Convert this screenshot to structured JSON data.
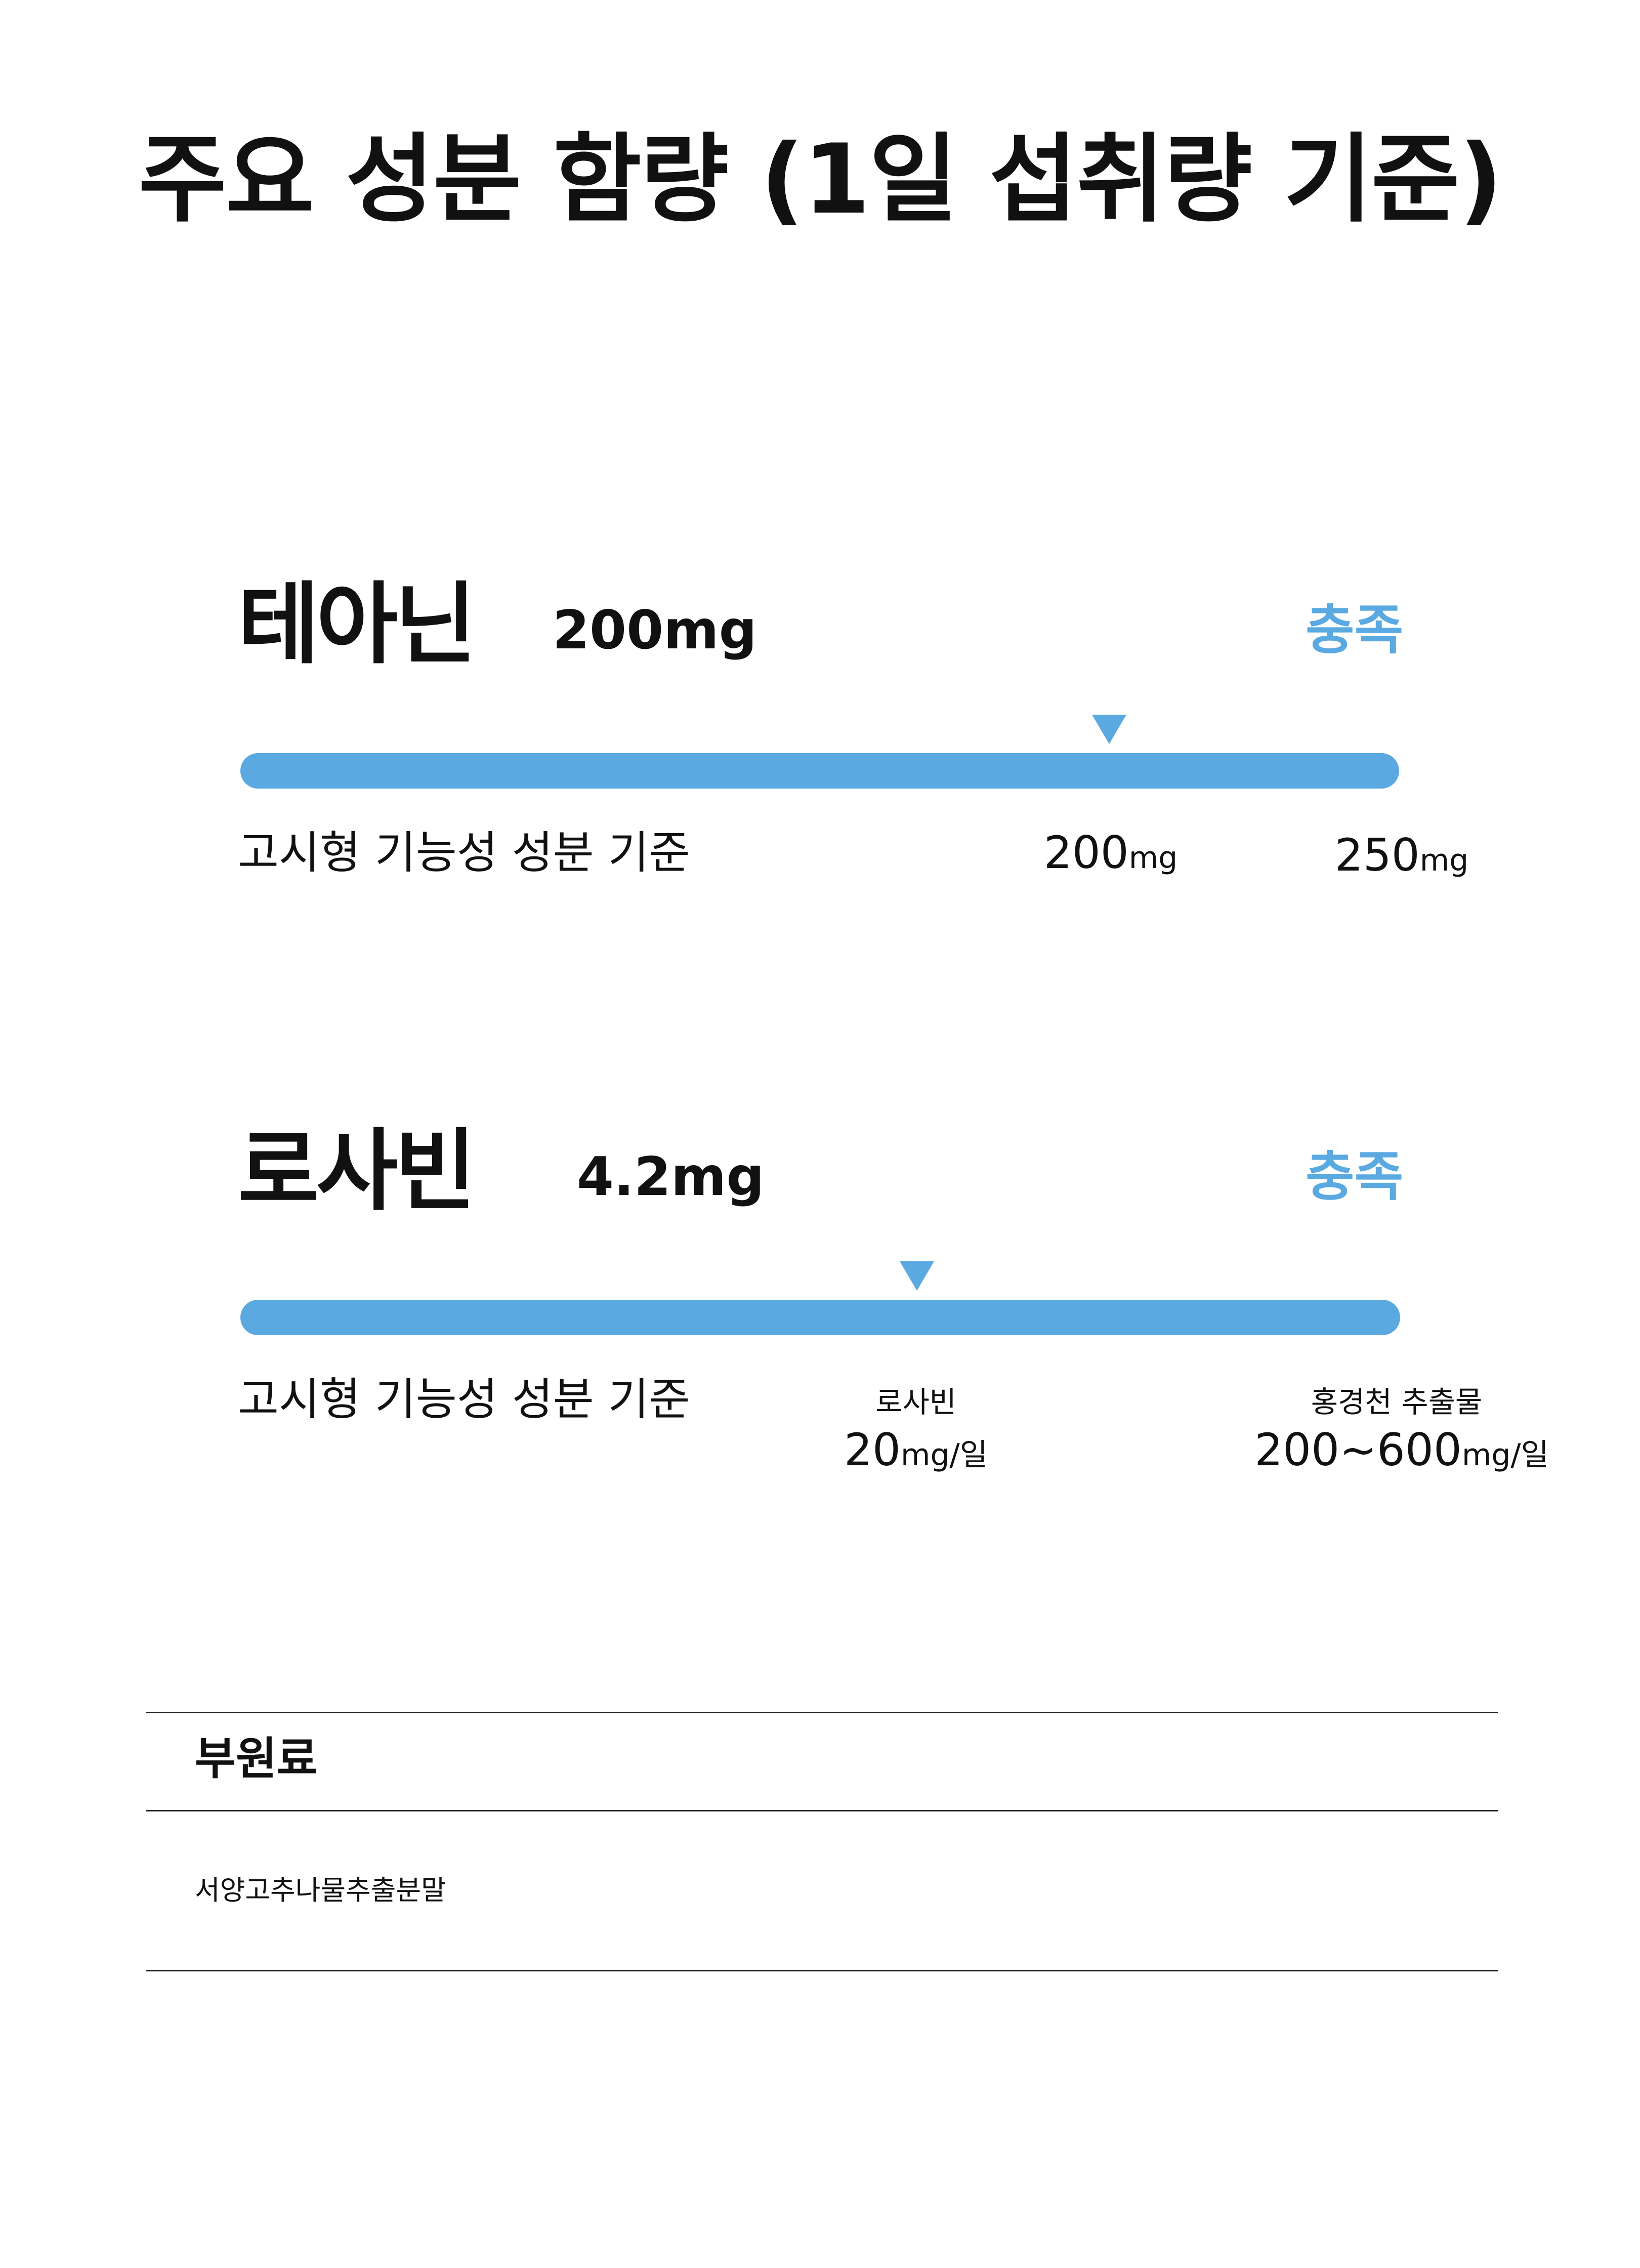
{
  "page": {
    "title": "주요 성분 함량 (1일 섭취량 기준)"
  },
  "ingredients": [
    {
      "name": "테아닌",
      "amount": "200mg",
      "status": "충족",
      "basis_label": "고시형 기능성 성분 기준",
      "marker_level_percent": 75,
      "ticks": [
        {
          "label": "",
          "value": "200",
          "unit": "mg"
        },
        {
          "label": "",
          "value": "250",
          "unit": "mg"
        }
      ]
    },
    {
      "name": "로사빈",
      "amount": "4.2mg",
      "status": "충족",
      "basis_label": "고시형 기능성 성분 기준",
      "marker_level_percent": 58,
      "ticks": [
        {
          "label": "로사빈",
          "value": "20",
          "unit": "mg/일"
        },
        {
          "label": "홍경천 추출물",
          "value": "200~600",
          "unit": "mg/일"
        }
      ]
    }
  ],
  "sub_ingredients": {
    "heading": "부원료",
    "items": [
      "서양고추나물추출분말"
    ]
  },
  "colors": {
    "accent": "#5aa9e1",
    "text": "#111111",
    "rule": "#222222"
  }
}
